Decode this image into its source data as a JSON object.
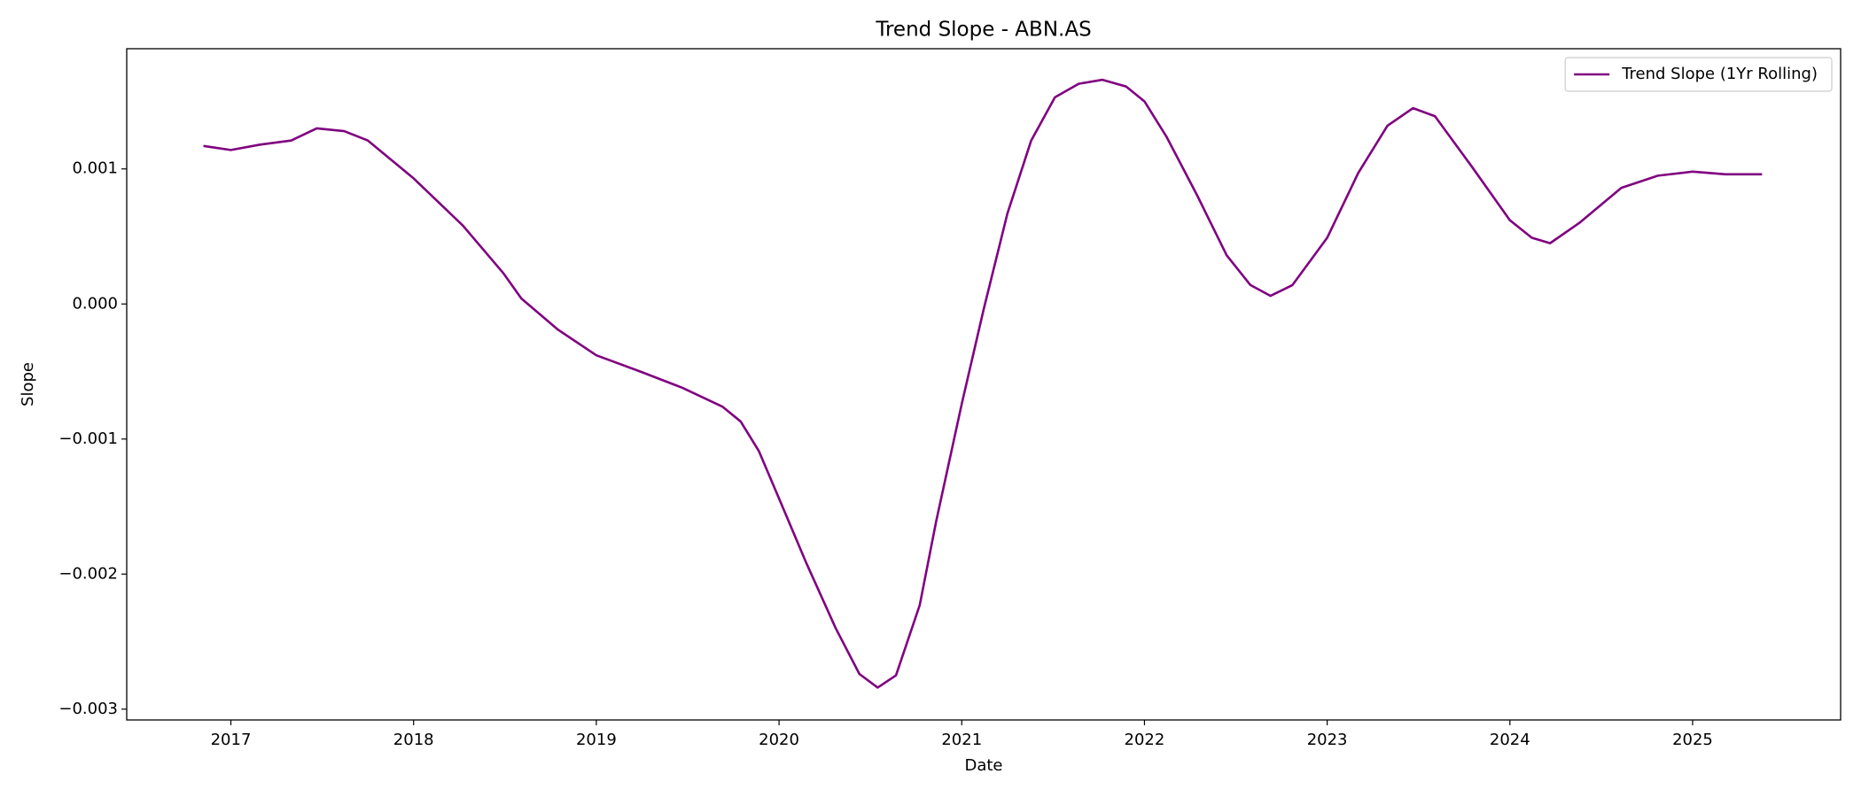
{
  "chart_data": {
    "type": "line",
    "title": "Trend Slope - ABN.AS",
    "xlabel": "Date",
    "ylabel": "Slope",
    "x": [
      2016.85,
      2017.0,
      2017.16,
      2017.33,
      2017.47,
      2017.62,
      2017.75,
      2018.0,
      2018.27,
      2018.49,
      2018.59,
      2018.79,
      2019.0,
      2019.24,
      2019.47,
      2019.69,
      2019.79,
      2019.89,
      2020.0,
      2020.15,
      2020.31,
      2020.44,
      2020.54,
      2020.64,
      2020.77,
      2020.86,
      2021.0,
      2021.12,
      2021.25,
      2021.38,
      2021.51,
      2021.64,
      2021.77,
      2021.9,
      2022.0,
      2022.12,
      2022.29,
      2022.45,
      2022.58,
      2022.69,
      2022.81,
      2023.0,
      2023.17,
      2023.33,
      2023.47,
      2023.59,
      2023.79,
      2024.0,
      2024.12,
      2024.22,
      2024.38,
      2024.61,
      2024.81,
      2025.0,
      2025.18,
      2025.38
    ],
    "series": [
      {
        "name": "Trend Slope (1Yr Rolling)",
        "color": "#800080",
        "values": [
          0.00117,
          0.00114,
          0.00118,
          0.00121,
          0.0013,
          0.00128,
          0.00121,
          0.00093,
          0.00058,
          0.00023,
          4e-05,
          -0.00019,
          -0.00038,
          -0.0005,
          -0.00062,
          -0.00076,
          -0.00087,
          -0.00109,
          -0.00144,
          -0.00192,
          -0.0024,
          -0.00274,
          -0.00284,
          -0.00275,
          -0.00223,
          -0.00161,
          -0.00074,
          -4e-05,
          0.00067,
          0.00121,
          0.00153,
          0.00163,
          0.00166,
          0.00161,
          0.0015,
          0.00124,
          0.0008,
          0.00036,
          0.00014,
          6e-05,
          0.00014,
          0.00049,
          0.00097,
          0.00132,
          0.00145,
          0.00139,
          0.00102,
          0.00062,
          0.00049,
          0.00045,
          0.0006,
          0.00086,
          0.00095,
          0.00098,
          0.00096,
          0.00096
        ]
      }
    ],
    "xlim": [
      2016.43,
      2025.81
    ],
    "xticks": [
      2017,
      2018,
      2019,
      2020,
      2021,
      2022,
      2023,
      2024,
      2025
    ],
    "ylim": [
      -0.00308,
      0.00189
    ],
    "yticks": [
      {
        "value": -0.003,
        "label": "−0.003"
      },
      {
        "value": -0.002,
        "label": "−0.002"
      },
      {
        "value": -0.001,
        "label": "−0.001"
      },
      {
        "value": 0,
        "label": "0.000"
      },
      0.001
    ],
    "legend": "upper right",
    "grid": false
  }
}
